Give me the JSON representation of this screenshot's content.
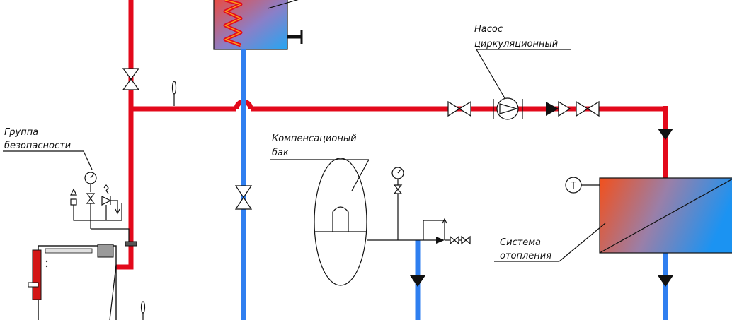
{
  "labels": {
    "pump": [
      "Насос",
      "циркуляционный"
    ],
    "safety_group": [
      "Группа",
      "безопасности"
    ],
    "expansion_tank": [
      "Компенсационый",
      "бак"
    ],
    "heating_system": [
      "Система",
      "отопления"
    ],
    "temperature_symbol": "T"
  },
  "colors": {
    "supply_pipe": "#e3091b",
    "return_pipe": "#2f7ff0",
    "line": "#111111"
  }
}
